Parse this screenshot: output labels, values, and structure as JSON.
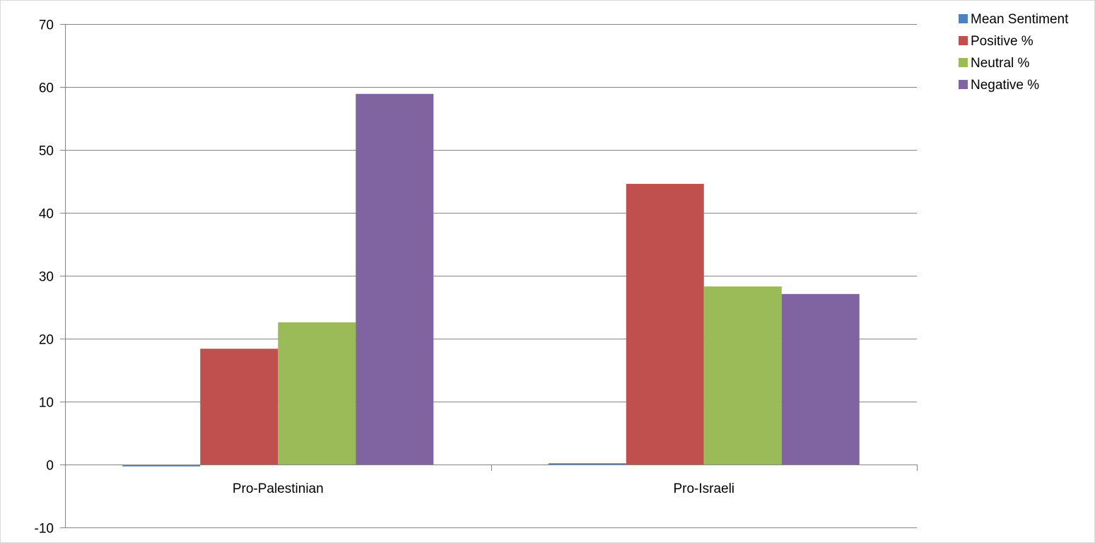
{
  "chart_data": {
    "type": "bar",
    "title": "",
    "xlabel": "",
    "ylabel": "",
    "categories": [
      "Pro-Palestinian",
      "Pro-Israeli"
    ],
    "series": [
      {
        "name": "Mean Sentiment",
        "values": [
          -0.3,
          0.2
        ],
        "color": "#4f81bd"
      },
      {
        "name": "Positive %",
        "values": [
          18.4,
          44.6
        ],
        "color": "#c0504d"
      },
      {
        "name": "Neutral %",
        "values": [
          22.6,
          28.3
        ],
        "color": "#9bbb59"
      },
      {
        "name": "Negative %",
        "values": [
          58.9,
          27.1
        ],
        "color": "#8064a2"
      }
    ],
    "ylim": [
      -10,
      70
    ],
    "yticks": [
      -10,
      0,
      10,
      20,
      30,
      40,
      50,
      60,
      70
    ],
    "grid": true,
    "legend_position": "top-right"
  }
}
